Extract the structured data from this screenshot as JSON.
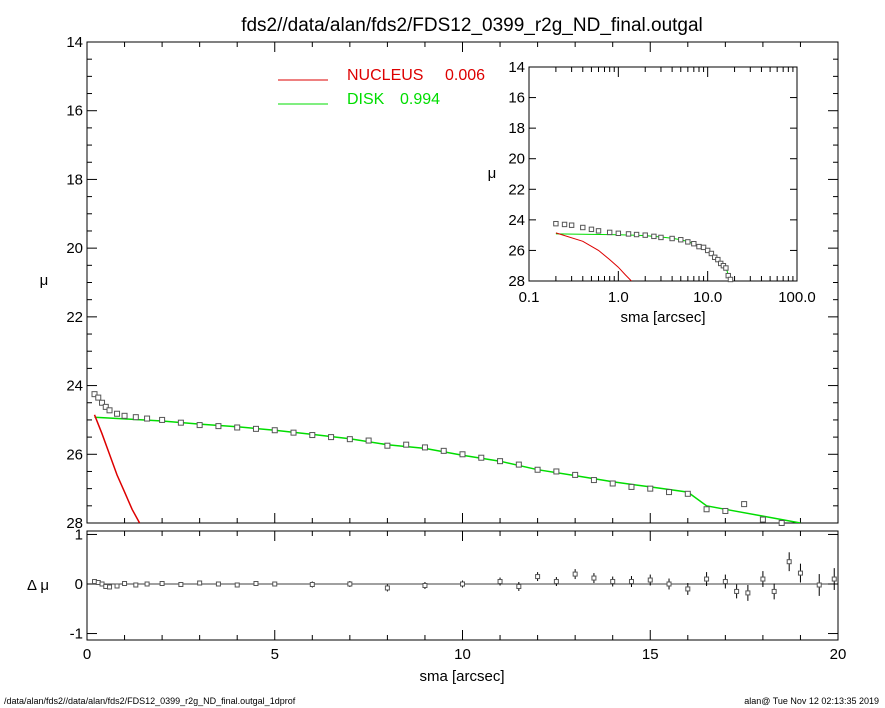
{
  "title": "fds2//data/alan/fds2/FDS12_0399_r2g_ND_final.outgal",
  "footer_left": "/data/alan/fds2//data/alan/fds2/FDS12_0399_r2g_ND_final.outgal_1dprof",
  "footer_right": "alan@  Tue Nov 12 02:13:35 2019",
  "colors": {
    "nucleus": "#dd0000",
    "disk": "#00dd00",
    "points": "#555555",
    "axes": "#000000"
  },
  "chart_data": [
    {
      "type": "scatter",
      "panel": "main",
      "xlabel": "sma [arcsec]",
      "ylabel": "μ",
      "xlim": [
        0,
        20
      ],
      "ylim": [
        28,
        14
      ],
      "yticks": [
        "14",
        "16",
        "18",
        "20",
        "22",
        "24",
        "26",
        "28"
      ],
      "legend": [
        {
          "name": "NUCLEUS",
          "value": "0.006"
        },
        {
          "name": "DISK",
          "value": "0.994"
        }
      ],
      "data": {
        "x": [
          0.2,
          0.3,
          0.4,
          0.5,
          0.6,
          0.8,
          1.0,
          1.3,
          1.6,
          2.0,
          2.5,
          3.0,
          3.5,
          4.0,
          4.5,
          5.0,
          5.5,
          6.0,
          6.5,
          7.0,
          7.5,
          8.0,
          8.5,
          9.0,
          9.5,
          10.0,
          10.5,
          11.0,
          11.5,
          12.0,
          12.5,
          13.0,
          13.5,
          14.0,
          14.5,
          15.0,
          15.5,
          16.0,
          16.5,
          17.0,
          17.5,
          18.0,
          18.5,
          19.0
        ],
        "mu": [
          24.25,
          24.35,
          24.5,
          24.62,
          24.72,
          24.82,
          24.88,
          24.92,
          24.96,
          25.0,
          25.08,
          25.15,
          25.18,
          25.22,
          25.26,
          25.3,
          25.37,
          25.44,
          25.5,
          25.56,
          25.6,
          25.75,
          25.72,
          25.8,
          25.9,
          26.0,
          26.1,
          26.2,
          26.3,
          26.45,
          26.5,
          26.6,
          26.75,
          26.85,
          26.95,
          27.0,
          27.1,
          27.15,
          27.6,
          27.65,
          27.45,
          27.9,
          28.0,
          28.1
        ]
      },
      "nucleus_model": {
        "x": [
          0.2,
          0.4,
          0.6,
          0.8,
          1.0,
          1.2,
          1.4
        ],
        "mu": [
          24.85,
          25.4,
          26.0,
          26.6,
          27.1,
          27.6,
          28.0
        ]
      },
      "disk_model": {
        "x": [
          0.2,
          1.0,
          2.0,
          3.0,
          4.0,
          5.0,
          6.0,
          7.0,
          8.0,
          9.0,
          10.0,
          11.0,
          12.0,
          13.0,
          14.0,
          15.0,
          16.0,
          16.5,
          17.0,
          18.0,
          19.0
        ],
        "mu": [
          24.92,
          24.97,
          25.03,
          25.12,
          25.2,
          25.3,
          25.42,
          25.55,
          25.72,
          25.83,
          26.03,
          26.2,
          26.45,
          26.62,
          26.8,
          26.95,
          27.1,
          27.5,
          27.6,
          27.8,
          28.0
        ]
      }
    },
    {
      "type": "scatter",
      "panel": "residual",
      "ylabel": "Δ μ",
      "xlim": [
        0,
        20
      ],
      "ylim": [
        -1.1,
        1.1
      ],
      "xticks": [
        "0",
        "5",
        "10",
        "15",
        "20"
      ],
      "yticks": [
        "1",
        "0",
        "-1"
      ],
      "data": {
        "x": [
          0.2,
          0.3,
          0.4,
          0.5,
          0.6,
          0.8,
          1.0,
          1.3,
          1.6,
          2.0,
          2.5,
          3.0,
          3.5,
          4.0,
          4.5,
          5.0,
          6.0,
          7.0,
          8.0,
          9.0,
          10.0,
          11.0,
          11.5,
          12.0,
          12.5,
          13.0,
          13.5,
          14.0,
          14.5,
          15.0,
          15.5,
          16.0,
          16.5,
          17.0,
          17.3,
          17.6,
          18.0,
          18.3,
          18.7,
          19.0,
          19.5,
          19.9
        ],
        "dmu": [
          0.05,
          0.03,
          0.0,
          -0.05,
          -0.06,
          -0.04,
          0.01,
          -0.02,
          0.0,
          0.01,
          -0.01,
          0.02,
          0.0,
          -0.02,
          0.01,
          0.0,
          -0.01,
          0.0,
          -0.08,
          -0.03,
          0.0,
          0.05,
          -0.05,
          0.15,
          0.05,
          0.2,
          0.12,
          0.05,
          0.05,
          0.08,
          0.0,
          -0.1,
          0.1,
          0.05,
          -0.15,
          -0.18,
          0.1,
          -0.15,
          0.45,
          0.22,
          -0.02,
          0.1
        ],
        "err": [
          0.01,
          0.01,
          0.01,
          0.01,
          0.01,
          0.01,
          0.01,
          0.01,
          0.01,
          0.01,
          0.01,
          0.01,
          0.01,
          0.01,
          0.01,
          0.01,
          0.02,
          0.02,
          0.03,
          0.03,
          0.03,
          0.04,
          0.05,
          0.05,
          0.05,
          0.06,
          0.06,
          0.06,
          0.07,
          0.07,
          0.07,
          0.08,
          0.1,
          0.1,
          0.1,
          0.12,
          0.12,
          0.12,
          0.15,
          0.15,
          0.18,
          0.18
        ]
      }
    },
    {
      "type": "scatter",
      "panel": "inset",
      "xlabel": "sma [arcsec]",
      "ylabel": "μ",
      "xscale": "log",
      "xlim": [
        0.1,
        100.0
      ],
      "ylim": [
        28,
        14
      ],
      "xticks": [
        "0.1",
        "1.0",
        "10.0",
        "100.0"
      ],
      "yticks": [
        "14",
        "16",
        "18",
        "20",
        "22",
        "24",
        "26",
        "28"
      ],
      "data": {
        "x": [
          0.2,
          0.25,
          0.3,
          0.4,
          0.5,
          0.6,
          0.8,
          1.0,
          1.3,
          1.6,
          2.0,
          2.5,
          3.0,
          4.0,
          5.0,
          6.0,
          7.0,
          8.0,
          9.0,
          10.0,
          11.0,
          12.0,
          13.0,
          14.0,
          15.0,
          16.0,
          17.0,
          18.0,
          19.0
        ],
        "mu": [
          24.25,
          24.3,
          24.35,
          24.5,
          24.62,
          24.72,
          24.82,
          24.88,
          24.92,
          24.96,
          25.0,
          25.08,
          25.15,
          25.22,
          25.3,
          25.44,
          25.56,
          25.75,
          25.8,
          26.0,
          26.2,
          26.45,
          26.6,
          26.85,
          27.0,
          27.15,
          27.65,
          27.9,
          28.1
        ]
      },
      "nucleus_model": {
        "x": [
          0.2,
          0.4,
          0.6,
          0.8,
          1.0,
          1.2,
          1.4
        ],
        "mu": [
          24.85,
          25.4,
          26.0,
          26.6,
          27.1,
          27.6,
          28.0
        ]
      },
      "disk_model": {
        "x": [
          0.2,
          1.0,
          2.0,
          3.0,
          4.0,
          5.0,
          6.0,
          7.0,
          8.0,
          9.0,
          10.0,
          11.0,
          12.0,
          13.0,
          14.0,
          15.0,
          16.0,
          17.0,
          18.0,
          19.0
        ],
        "mu": [
          24.92,
          24.97,
          25.03,
          25.12,
          25.2,
          25.3,
          25.42,
          25.55,
          25.72,
          25.83,
          26.03,
          26.2,
          26.45,
          26.62,
          26.8,
          26.95,
          27.1,
          27.6,
          27.8,
          28.0
        ]
      }
    }
  ]
}
